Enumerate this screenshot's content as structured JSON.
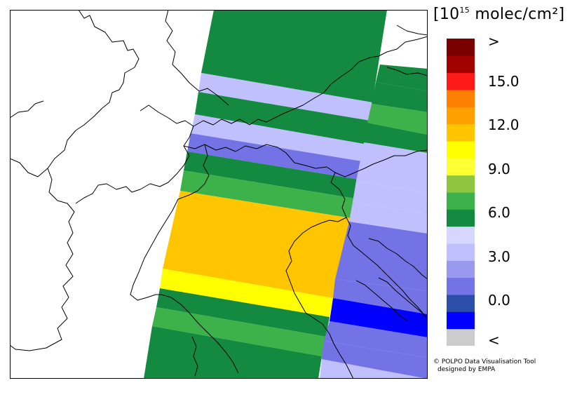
{
  "legend": {
    "unit_base": "[10",
    "unit_exp": "15",
    "unit_rest": " molec/cm²]",
    "colors": [
      "#cccccc",
      "#0000ff",
      "#2b4ea8",
      "#7373e6",
      "#9999f0",
      "#c0c0ff",
      "#d6d6ff",
      "#138a3f",
      "#3db24a",
      "#8ec63f",
      "#ffff33",
      "#ffff00",
      "#ffc600",
      "#ffa000",
      "#ff7f00",
      "#ff1a1a",
      "#a00000",
      "#7a0000"
    ],
    "labels": [
      {
        "text": ">",
        "level": 18
      },
      {
        "text": "15.0",
        "level": 15
      },
      {
        "text": "12.0",
        "level": 12
      },
      {
        "text": "9.0",
        "level": 9
      },
      {
        "text": "6.0",
        "level": 6
      },
      {
        "text": "3.0",
        "level": 3
      },
      {
        "text": "0.0",
        "level": 0
      },
      {
        "text": "<",
        "level": -3
      }
    ]
  },
  "credits": {
    "line1": "© POLPO Data Visualisation Tool",
    "line2": "designed by EMPA"
  }
}
